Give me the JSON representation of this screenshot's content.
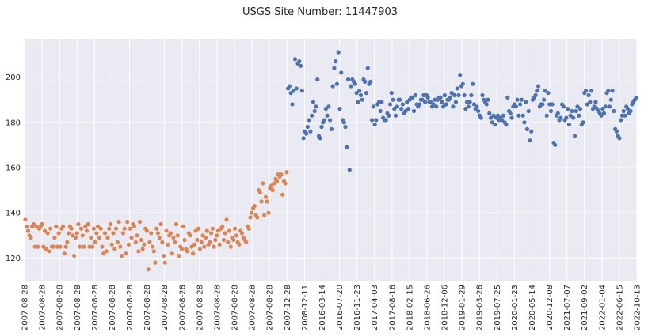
{
  "chart_data": {
    "type": "scatter",
    "title": "USGS Site Number: 11447903",
    "xlabel": "",
    "ylabel": "",
    "ylim": [
      110,
      217
    ],
    "yticks": [
      120,
      140,
      160,
      180,
      200
    ],
    "grid": true,
    "background": "#eaeaf2",
    "xtick_labels": [
      "2007-08-28",
      "2007-08-28",
      "2007-08-28",
      "2007-08-28",
      "2007-08-28",
      "2007-08-28",
      "2007-08-28",
      "2007-08-28",
      "2007-08-28",
      "2007-08-28",
      "2007-08-28",
      "2007-08-28",
      "2007-08-28",
      "2007-08-28",
      "2007-08-28",
      "2007-12-28",
      "2008-12-11",
      "2016-03-14",
      "2016-07-20",
      "2016-11-23",
      "2017-04-03",
      "2017-08-16",
      "2018-02-15",
      "2018-06-26",
      "2018-12-06",
      "2019-01-29",
      "2019-03-28",
      "2019-07-25",
      "2020-01-23",
      "2020-05-14",
      "2020-12-08",
      "2021-07-07",
      "2021-09-02",
      "2022-01-04",
      "2022-06-15",
      "2022-10-13"
    ],
    "series": [
      {
        "color": "#dd8452",
        "y": [
          137,
          134,
          132,
          130,
          129,
          134,
          135,
          125,
          134,
          125,
          133,
          134,
          135,
          125,
          132,
          124,
          131,
          123,
          133,
          125,
          125,
          129,
          134,
          125,
          131,
          125,
          133,
          134,
          122,
          125,
          127,
          131,
          134,
          133,
          130,
          121,
          129,
          131,
          135,
          125,
          133,
          130,
          125,
          134,
          132,
          135,
          125,
          129,
          125,
          133,
          127,
          131,
          134,
          129,
          133,
          125,
          122,
          131,
          123,
          129,
          133,
          135,
          126,
          131,
          124,
          133,
          127,
          136,
          125,
          121,
          131,
          133,
          122,
          136,
          126,
          133,
          129,
          135,
          134,
          127,
          130,
          123,
          136,
          128,
          124,
          126,
          133,
          132,
          115,
          127,
          131,
          125,
          123,
          118,
          133,
          131,
          129,
          135,
          127,
          121,
          118,
          132,
          126,
          130,
          131,
          122,
          129,
          127,
          135,
          130,
          121,
          125,
          124,
          134,
          128,
          124,
          123,
          131,
          130,
          125,
          122,
          126,
          132,
          128,
          133,
          124,
          127,
          130,
          125,
          129,
          132,
          126,
          127,
          131,
          133,
          125,
          128,
          130,
          132,
          126,
          133,
          134,
          128,
          131,
          137,
          127,
          132,
          125,
          129,
          128,
          133,
          130,
          127,
          126,
          132,
          131,
          129,
          128,
          127,
          134,
          133,
          138,
          140,
          142,
          143,
          139,
          138,
          150,
          149,
          145,
          153,
          139,
          147,
          145,
          140,
          151,
          152,
          150,
          153,
          155,
          154,
          157,
          156,
          157,
          148,
          154,
          153,
          158
        ]
      },
      {
        "color": "#4c72b0",
        "y": [
          195,
          196,
          193,
          188,
          194,
          208,
          195,
          206,
          207,
          205,
          194,
          173,
          176,
          175,
          178,
          181,
          176,
          183,
          189,
          185,
          187,
          199,
          174,
          173,
          178,
          180,
          181,
          186,
          183,
          187,
          181,
          177,
          196,
          204,
          207,
          197,
          211,
          186,
          202,
          181,
          180,
          178,
          169,
          199,
          159,
          196,
          199,
          198,
          197,
          193,
          189,
          194,
          192,
          190,
          199,
          198,
          193,
          204,
          197,
          198,
          181,
          187,
          179,
          181,
          188,
          189,
          185,
          189,
          182,
          181,
          181,
          184,
          183,
          188,
          193,
          190,
          186,
          183,
          187,
          190,
          190,
          186,
          188,
          184,
          185,
          189,
          186,
          190,
          191,
          191,
          185,
          192,
          188,
          187,
          188,
          190,
          190,
          192,
          189,
          192,
          191,
          189,
          189,
          187,
          188,
          190,
          187,
          190,
          191,
          191,
          189,
          187,
          192,
          188,
          190,
          190,
          191,
          193,
          187,
          192,
          189,
          195,
          192,
          201,
          196,
          197,
          192,
          186,
          189,
          187,
          189,
          192,
          197,
          188,
          186,
          187,
          185,
          183,
          182,
          192,
          190,
          189,
          188,
          190,
          184,
          182,
          180,
          183,
          179,
          182,
          183,
          181,
          182,
          181,
          183,
          180,
          179,
          191,
          185,
          184,
          182,
          187,
          188,
          187,
          190,
          183,
          188,
          190,
          183,
          180,
          189,
          177,
          185,
          172,
          176,
          190,
          191,
          192,
          194,
          196,
          187,
          188,
          188,
          190,
          194,
          183,
          193,
          188,
          185,
          188,
          171,
          170,
          183,
          184,
          181,
          182,
          188,
          187,
          181,
          182,
          186,
          179,
          183,
          185,
          182,
          174,
          185,
          187,
          183,
          186,
          179,
          180,
          193,
          194,
          188,
          192,
          189,
          194,
          186,
          187,
          189,
          186,
          185,
          184,
          183,
          186,
          184,
          187,
          193,
          194,
          187,
          190,
          194,
          185,
          177,
          176,
          174,
          173,
          181,
          183,
          185,
          183,
          187,
          186,
          184,
          185,
          188,
          189,
          190,
          191
        ]
      }
    ]
  }
}
